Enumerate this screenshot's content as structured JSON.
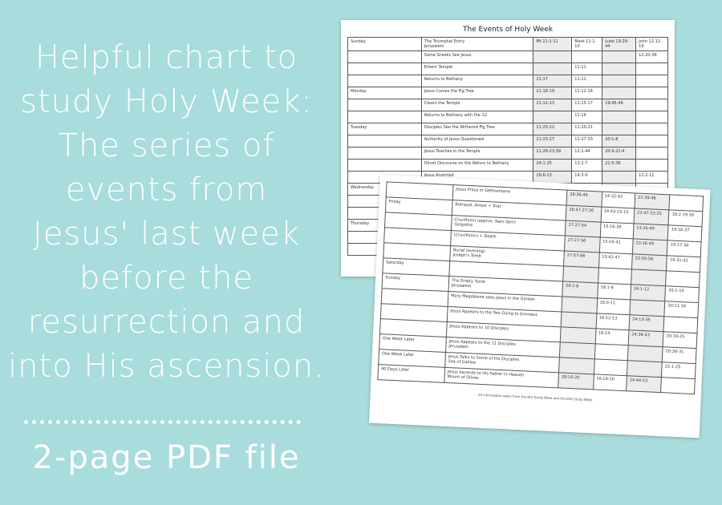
{
  "headline": {
    "lines": [
      "Helpful chart to",
      "study Holy Week:",
      "The series of",
      "events from",
      "Jesus' last week",
      "before the",
      "resurrection and",
      "into His ascension."
    ]
  },
  "subtitle": "2-page PDF file",
  "page1": {
    "title": "The Events of Holy Week",
    "rows": [
      [
        "Sunday",
        "The Triumphal Entry\nJerusalem",
        "Mt 21:1-11",
        "Mark 11:1-10",
        "Luke 19:29-44",
        "John 12:12-19"
      ],
      [
        "",
        "Some Greeks See Jesus",
        "",
        "",
        "",
        "12:20-36"
      ],
      [
        "",
        "Enters Temple",
        "",
        "11:11",
        "",
        ""
      ],
      [
        "",
        "Returns to Bethany",
        "21:17",
        "11:11",
        "",
        ""
      ],
      [
        "Monday",
        "Jesus Curses the Fig Tree",
        "21:18-19",
        "11:12-14",
        "",
        ""
      ],
      [
        "",
        "Clears the Temple",
        "21:12-13",
        "11:15-17",
        "19:45-46",
        ""
      ],
      [
        "",
        "Returns to Bethany with the 12",
        "",
        "11:19",
        "",
        ""
      ],
      [
        "Tuesday",
        "Disciples See the Withered Fig Tree",
        "21:20-22",
        "11:20-21",
        "",
        ""
      ],
      [
        "",
        "Authority of Jesus Questioned",
        "21:23-27",
        "11:27-33",
        "20:1-8",
        ""
      ],
      [
        "",
        "Jesus Teaches in the Temple",
        "21:28-23:39",
        "12:1-44",
        "20:9-21:4",
        ""
      ],
      [
        "",
        "Olivet Discourse on the Return to Bethany",
        "24:1-25",
        "13:1-7",
        "21:5-36",
        ""
      ],
      [
        "",
        "Jesus Anointed",
        "26:6-13",
        "14:3-9",
        "",
        "12:2-11"
      ],
      [
        "Wednesday",
        "",
        "",
        "",
        "",
        ""
      ],
      [
        "",
        "",
        "",
        "",
        "",
        ""
      ],
      [
        "",
        "",
        "",
        "",
        "",
        ""
      ],
      [
        "Thursday",
        "",
        "",
        "",
        "",
        ""
      ],
      [
        "",
        "",
        "",
        "",
        "",
        ""
      ],
      [
        "",
        "",
        "",
        "",
        "",
        ""
      ]
    ]
  },
  "page2": {
    "rows": [
      [
        "",
        "Jesus Prays in Gethsemane",
        "26:36-46",
        "14:32-42",
        "22:39-46",
        ""
      ],
      [
        "Friday",
        "Betrayal, Arrest + Trial",
        "26:47-27:26",
        "14:43-15:15",
        "22:47-23:25",
        "18:2-19:16"
      ],
      [
        "",
        "Crucifixion (approx. 9am-3pm)\nGolgotha",
        "27:27-54",
        "15:16-39",
        "23:26-49",
        "19:16-37"
      ],
      [
        "",
        "(Crucifixion) + Death",
        "27:27-56",
        "15:16-41",
        "23:26-49",
        "19:17-30"
      ],
      [
        "",
        "Burial (evening)\nJoseph's Tomb",
        "27:57-66",
        "15:42-47",
        "23:50-56",
        "19:31-42"
      ],
      [
        "Saturday",
        "",
        "",
        "",
        "",
        ""
      ],
      [
        "Sunday",
        "The Empty Tomb\nJerusalem",
        "28:1-8",
        "16:1-8",
        "24:1-12",
        "20:1-10"
      ],
      [
        "",
        "Mary Magdalene sees Jesus in the Garden",
        "",
        "16:9-11",
        "",
        "20:11-18"
      ],
      [
        "",
        "Jesus Appears to the Two Going to Emmaus",
        "",
        "16:12-13",
        "24:13-35",
        ""
      ],
      [
        "",
        "Jesus Appears to 10 Disciples",
        "",
        "16:14",
        "24:36-43",
        "20:19-25"
      ],
      [
        "One Week Later",
        "Jesus Appears to the 11 Disciples\nJerusalem",
        "",
        "",
        "",
        "20:26-31"
      ],
      [
        "One Week Later",
        "Jesus Talks to Some of His Disciples\nSea of Galilee",
        "",
        "",
        "",
        "21:1-25"
      ],
      [
        "40 Days Later",
        "Jesus Ascends to His Father in Heaven\nMount of Olives",
        "28:16-20",
        "16:19-20",
        "24:44-53",
        ""
      ]
    ],
    "note": "All information taken from the NIV Study Bible and the ESV Study Bible."
  }
}
